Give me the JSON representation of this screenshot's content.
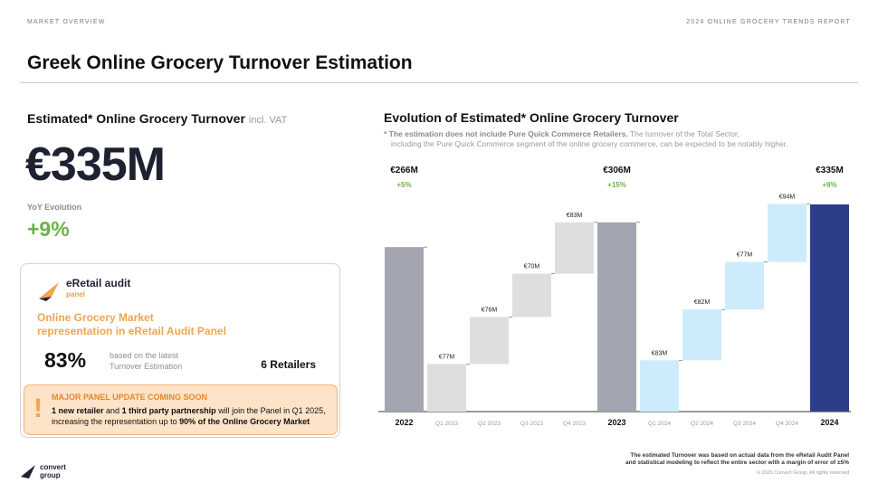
{
  "header": {
    "left": "MARKET OVERVIEW",
    "right": "2024 ONLINE GROCERY TRENDS REPORT"
  },
  "page_title": "Greek Online Grocery Turnover Estimation",
  "left": {
    "title": "Estimated* Online Grocery Turnover",
    "title_sub": "incl. VAT",
    "big_value": "€335M",
    "yoy_label": "YoY Evolution",
    "yoy_value": "+9%",
    "panel": {
      "logo_name": "eRetail audit",
      "logo_sub": "panel",
      "heading_line1": "Online Grocery Market",
      "heading_line2": "representation in eRetail Audit Panel",
      "pct": "83%",
      "pct_note_line1": "based on the latest",
      "pct_note_line2": "Turnover Estimation",
      "retailers": "6 Retailers",
      "update": {
        "title": "MAJOR PANEL UPDATE COMING SOON",
        "bold1": "1 new retailer",
        "text1": " and ",
        "bold2": "1 third party partnership",
        "text2": " will join the Panel in Q1 2025,",
        "text3": "increasing the representation up to ",
        "bold3": "90% of the Online Grocery Market"
      }
    }
  },
  "right": {
    "title": "Evolution of Estimated* Online Grocery Turnover",
    "note_bold": "* The estimation does not include Pure Quick Commerce Retailers.",
    "note_rest": " The turnover of the Total Sector,",
    "note_line2": "including the Pure Quick Commerce segment of the online grocery commerce, can be expected to be notably higher."
  },
  "colors": {
    "year_bar": "#a3a6b1",
    "q2023_bar": "#dedede",
    "q2024_bar": "#ccecfb",
    "final_bar": "#2c3e8a",
    "growth": "#6bb344"
  },
  "chart_data": {
    "type": "bar",
    "subtype": "waterfall",
    "categories": [
      "2022",
      "Q1 2023",
      "Q2 2023",
      "Q3 2023",
      "Q4 2023",
      "2023",
      "Q1 2024",
      "Q2 2024",
      "Q3 2024",
      "Q4 2024",
      "2024"
    ],
    "values": [
      266,
      77,
      76,
      70,
      83,
      306,
      83,
      82,
      77,
      94,
      335
    ],
    "kinds": [
      "total",
      "quarter",
      "quarter",
      "quarter",
      "quarter",
      "total",
      "quarter",
      "quarter",
      "quarter",
      "quarter",
      "total"
    ],
    "value_labels": [
      "",
      "€77M",
      "€76M",
      "€70M",
      "€83M",
      "",
      "€83M",
      "€82M",
      "€77M",
      "€94M",
      ""
    ],
    "totals": [
      {
        "index": 0,
        "label": "€266M",
        "growth": "+5%"
      },
      {
        "index": 5,
        "label": "€306M",
        "growth": "+15%"
      },
      {
        "index": 10,
        "label": "€335M",
        "growth": "+9%"
      }
    ],
    "ylim": [
      0,
      340
    ]
  },
  "footer": {
    "note_line1": "The estimated Turnover was based on actual data from the eRetail Audit Panel",
    "note_line2": "and statistical modeling to reflect the entire sector with a margin of error of ±5%",
    "copyright": "© 2025 Convert Group, All rights reserved",
    "brand_line1": "convert",
    "brand_line2": "group"
  }
}
